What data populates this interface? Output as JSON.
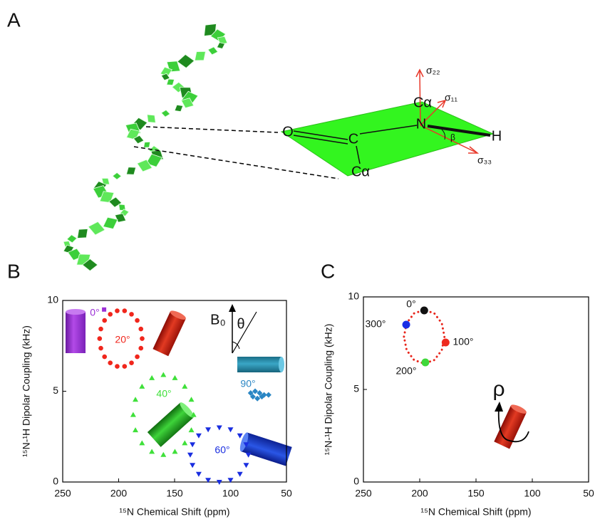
{
  "panel_labels": [
    "A",
    "B",
    "C"
  ],
  "diagram": {
    "o": "O",
    "c": "C",
    "calpha_low": "Cα",
    "calpha_high": "Cα",
    "n": "N",
    "h": "H",
    "sigma22": "σ₂₂",
    "sigma11": "σ₁₁",
    "sigma33": "σ₃₃",
    "beta": "β"
  },
  "chart_data": [
    {
      "type": "scatter",
      "xlabel": "¹⁵N Chemical Shift (ppm)",
      "ylabel": "¹⁵N-¹H Dipolar Coupling (kHz)",
      "xlim": [
        250,
        50
      ],
      "ylim": [
        0,
        10
      ],
      "xticks": [
        250,
        200,
        150,
        100,
        50
      ],
      "yticks": [
        0,
        5,
        10
      ],
      "annotations": {
        "b0": "B₀",
        "theta": "θ"
      },
      "series": [
        {
          "name": "0°",
          "color": "#9b2fd6",
          "marker": "square",
          "x": [
            213
          ],
          "values": [
            9.5
          ]
        },
        {
          "name": "20°",
          "color": "#f0261c",
          "marker": "circle",
          "x": [
            217,
            215.9,
            212.6,
            207.5,
            201.3,
            194.7,
            188.5,
            183.4,
            180.1,
            179,
            180.1,
            183.4,
            188.5,
            194.7,
            201.3,
            207.5,
            212.6,
            215.9
          ],
          "values": [
            7.9,
            8.43,
            8.9,
            9.24,
            9.43,
            9.43,
            9.24,
            8.9,
            8.43,
            7.9,
            7.37,
            6.9,
            6.56,
            6.37,
            6.37,
            6.56,
            6.9,
            7.37
          ]
        },
        {
          "name": "40°",
          "color": "#3fe03a",
          "marker": "triangle",
          "x": [
            187,
            185,
            179.1,
            170.3,
            160,
            149.7,
            140.9,
            135,
            133,
            135,
            140.9,
            149.7,
            160,
            170.3,
            179.1,
            185
          ],
          "values": [
            3.7,
            4.54,
            5.26,
            5.73,
            5.9,
            5.73,
            5.26,
            4.54,
            3.7,
            2.86,
            2.14,
            1.67,
            1.5,
            1.67,
            2.14,
            2.86
          ]
        },
        {
          "name": "60°",
          "color": "#1a2ee0",
          "marker": "triangle-down",
          "x": [
            136,
            134,
            128.4,
            120,
            110,
            100,
            91.6,
            86,
            84,
            86,
            91.6,
            100,
            110,
            120,
            128.4,
            134
          ],
          "values": [
            1.5,
            2.07,
            2.56,
            2.89,
            3.0,
            2.89,
            2.56,
            2.07,
            1.5,
            0.93,
            0.44,
            0.11,
            0,
            0.11,
            0.44,
            0.93
          ]
        },
        {
          "name": "90°",
          "color": "#2a86c4",
          "marker": "diamond",
          "x": [
            82,
            78,
            74,
            70,
            80,
            76,
            72,
            66
          ],
          "values": [
            4.9,
            5.0,
            4.9,
            4.8,
            4.7,
            4.6,
            4.7,
            4.8
          ]
        }
      ]
    },
    {
      "type": "scatter",
      "xlabel": "¹⁵N Chemical Shift (ppm)",
      "ylabel": "¹⁵N-¹H Dipolar Coupling (kHz)",
      "xlim": [
        250,
        50
      ],
      "ylim": [
        0,
        10
      ],
      "xticks": [
        250,
        200,
        150,
        100,
        50
      ],
      "yticks": [
        0,
        5,
        10
      ],
      "annotations": {
        "rho": "ρ"
      },
      "series": [
        {
          "color": "#e8261c",
          "marker": "dotted",
          "x": [
            214,
            211.6,
            205,
            196,
            187,
            180.4,
            178,
            180.4,
            187,
            196,
            205,
            211.6
          ],
          "values": [
            7.85,
            8.58,
            9.11,
            9.3,
            9.11,
            8.58,
            7.85,
            7.12,
            6.59,
            6.4,
            6.59,
            7.12
          ]
        },
        {
          "name": "0°",
          "color": "#111111",
          "marker": "dot",
          "x": [
            196
          ],
          "values": [
            9.27
          ]
        },
        {
          "name": "300°",
          "color": "#1b2ee6",
          "marker": "dot",
          "x": [
            212
          ],
          "values": [
            8.5
          ]
        },
        {
          "name": "100°",
          "color": "#ee2a1e",
          "marker": "dot",
          "x": [
            177
          ],
          "values": [
            7.54
          ]
        },
        {
          "name": "200°",
          "color": "#3fd83a",
          "marker": "dot",
          "x": [
            195
          ],
          "values": [
            6.46
          ]
        }
      ]
    }
  ]
}
